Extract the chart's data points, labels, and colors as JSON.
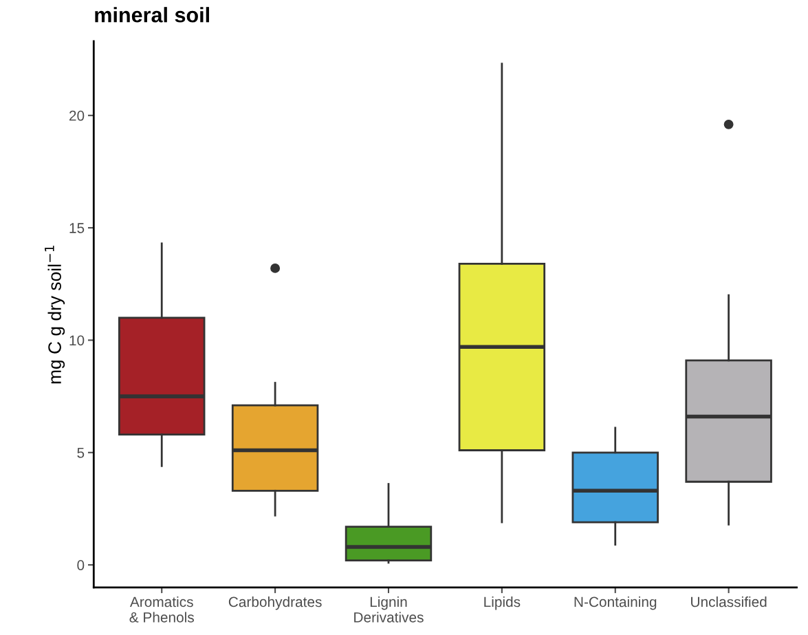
{
  "chart_data": {
    "type": "box",
    "title": "mineral soil",
    "ylabel": "mg C g dry soil$^{−1}$",
    "categories": [
      "Aromatics\n& Phenols",
      "Carbohydrates",
      "Lignin\nDerivatives",
      "Lipids",
      "N-Containing",
      "Unclassified"
    ],
    "colors": [
      "#a52127",
      "#e5a530",
      "#4a9a24",
      "#e8ea44",
      "#45a3de",
      "#b5b3b6"
    ],
    "boxes": [
      {
        "low": 4.4,
        "q1": 5.8,
        "median": 7.5,
        "q3": 11.0,
        "high": 14.3
      },
      {
        "low": 2.2,
        "q1": 3.3,
        "median": 5.1,
        "q3": 7.1,
        "high": 8.1,
        "outliers": [
          13.2
        ]
      },
      {
        "low": 0.1,
        "q1": 0.2,
        "median": 0.8,
        "q3": 1.7,
        "high": 3.6
      },
      {
        "low": 1.9,
        "q1": 5.1,
        "median": 9.7,
        "q3": 13.4,
        "high": 22.3
      },
      {
        "low": 0.9,
        "q1": 1.9,
        "median": 3.3,
        "q3": 5.0,
        "high": 6.1
      },
      {
        "low": 1.8,
        "q1": 3.7,
        "median": 6.6,
        "q3": 9.1,
        "high": 12.0,
        "outliers": [
          19.6
        ]
      }
    ],
    "ylim": [
      -1.0,
      23.3
    ],
    "yticks": [
      0,
      5,
      10,
      15,
      20
    ],
    "grid": false,
    "legend": false
  }
}
